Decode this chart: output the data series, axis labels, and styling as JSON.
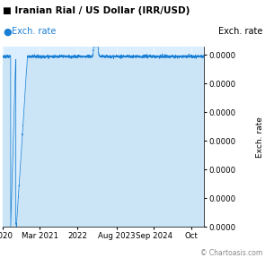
{
  "title": "■ Iranian Rial / US Dollar (IRR/USD)",
  "legend_label": "Exch. rate",
  "ylabel_right": "Exch. rate",
  "watermark": "© Chartoasis.com",
  "x_tick_labels": [
    "2020",
    "Mar 2021",
    "2022",
    "Aug 2023",
    "Sep 2024",
    "Oct"
  ],
  "x_tick_positions": [
    0.0,
    0.185,
    0.37,
    0.565,
    0.75,
    0.935
  ],
  "ylim": [
    0.0,
    2.52e-05
  ],
  "ytick_values": [
    0.0,
    4e-06,
    8e-06,
    1.2e-05,
    1.6e-05,
    2e-05,
    2.4e-05
  ],
  "line_color": "#1a7fd4",
  "fill_color": "#cce5f6",
  "plot_bg_color": "#daeeff",
  "title_fontsize": 7.5,
  "legend_fontsize": 7.0,
  "tick_fontsize": 6.2,
  "ylabel_fontsize": 6.5
}
